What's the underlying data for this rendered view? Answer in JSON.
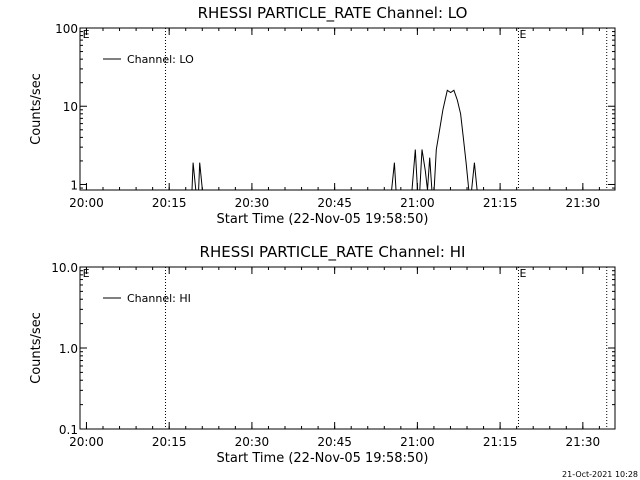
{
  "footer": {
    "timestamp": "21-Oct-2021 10:28"
  },
  "chart_data": [
    {
      "type": "line",
      "title": "RHESSI PARTICLE_RATE Channel: LO",
      "xlabel": "Start Time (22-Nov-05 19:58:50)",
      "ylabel": "Counts/sec",
      "x_unit": "minutes since 19:58:50",
      "xlim": [
        0,
        97
      ],
      "xticks": [
        1.17,
        16.17,
        31.17,
        46.17,
        61.17,
        76.17,
        91.17
      ],
      "xtick_labels": [
        "20:00",
        "20:15",
        "20:30",
        "20:45",
        "21:00",
        "21:15",
        "21:30"
      ],
      "yscale": "log",
      "ylim": [
        0.85,
        100
      ],
      "yticks": [
        1,
        10,
        100
      ],
      "ytick_labels": [
        "1",
        "10",
        "100"
      ],
      "legend": {
        "position": "top-left",
        "entries": [
          "Channel: LO"
        ]
      },
      "annotations": [
        {
          "text": "E",
          "x": 0.3
        },
        {
          "text": "E",
          "x": 79.5
        }
      ],
      "vlines_dotted": [
        15.5,
        79.5,
        95.5
      ],
      "series": [
        {
          "name": "Channel: LO",
          "x": [
            20.3,
            20.5,
            21.0,
            21.5,
            21.7,
            22.2,
            22.5,
            56.5,
            57.0,
            57.3,
            60.2,
            60.8,
            61.2,
            61.6,
            62.0,
            62.6,
            63.0,
            63.4,
            63.8,
            64.2,
            64.6,
            65.2,
            65.8,
            66.2,
            66.6,
            67.2,
            67.8,
            68.4,
            69.0,
            69.5,
            70.0,
            70.5,
            71.0,
            71.5,
            72.0,
            72.4,
            73.0,
            73.2
          ],
          "y": [
            0.85,
            1.9,
            0.85,
            0.85,
            1.9,
            0.85,
            0.85,
            0.85,
            1.9,
            0.85,
            0.85,
            2.8,
            0.85,
            0.85,
            2.8,
            1.5,
            0.85,
            2.2,
            0.85,
            0.85,
            2.8,
            5,
            9,
            12,
            16,
            15,
            16,
            12,
            8,
            4,
            1.9,
            0.85,
            0.85,
            1.9,
            0.85,
            0.85,
            0.85,
            0.85
          ]
        }
      ]
    },
    {
      "type": "line",
      "title": "RHESSI PARTICLE_RATE Channel: HI",
      "xlabel": "Start Time (22-Nov-05 19:58:50)",
      "ylabel": "Counts/sec",
      "x_unit": "minutes since 19:58:50",
      "xlim": [
        0,
        97
      ],
      "xticks": [
        1.17,
        16.17,
        31.17,
        46.17,
        61.17,
        76.17,
        91.17
      ],
      "xtick_labels": [
        "20:00",
        "20:15",
        "20:30",
        "20:45",
        "21:00",
        "21:15",
        "21:30"
      ],
      "yscale": "log",
      "ylim": [
        0.1,
        10
      ],
      "yticks": [
        0.1,
        1,
        10
      ],
      "ytick_labels": [
        "0.1",
        "1.0",
        "10.0"
      ],
      "legend": {
        "position": "top-left",
        "entries": [
          "Channel: HI"
        ]
      },
      "annotations": [
        {
          "text": "E",
          "x": 0.3
        },
        {
          "text": "E",
          "x": 79.5
        }
      ],
      "vlines_dotted": [
        15.5,
        79.5,
        95.5
      ],
      "series": [
        {
          "name": "Channel: HI",
          "x": [],
          "y": []
        }
      ]
    }
  ]
}
